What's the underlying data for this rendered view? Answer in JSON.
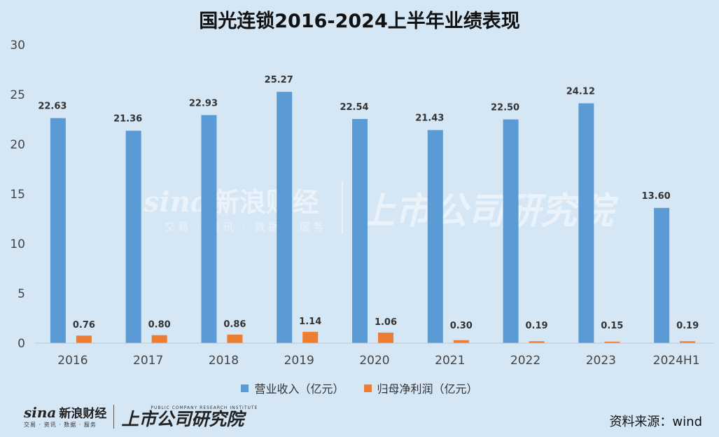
{
  "title": "国光连锁2016-2024上半年业绩表现",
  "source": "资料来源：wind",
  "watermark": {
    "left_logo": "sina",
    "left_name": "新浪财经",
    "left_tagline": "交易 · 资讯 · 数据 · 服务",
    "right_name": "上市公司研究院"
  },
  "brand": {
    "logo": "sina",
    "name": "新浪财经",
    "tagline": "交易 · 资讯 · 数据 · 服务",
    "institute_en": "PUBLIC COMPANY RESEARCH INSTITUTE",
    "institute_cn": "上市公司研究院"
  },
  "colors": {
    "revenue": "#5b9bd5",
    "profit": "#ed7d31",
    "background": "#d5e6f5"
  },
  "chart_data": {
    "type": "bar",
    "title": "国光连锁2016-2024上半年业绩表现",
    "categories": [
      "2016",
      "2017",
      "2018",
      "2019",
      "2020",
      "2021",
      "2022",
      "2023",
      "2024H1"
    ],
    "series": [
      {
        "name": "营业收入（亿元）",
        "values": [
          22.63,
          21.36,
          22.93,
          25.27,
          22.54,
          21.43,
          22.5,
          24.12,
          13.6
        ],
        "labels": [
          "22.63",
          "21.36",
          "22.93",
          "25.27",
          "22.54",
          "21.43",
          "22.50",
          "24.12",
          "13.60"
        ]
      },
      {
        "name": "归母净利润（亿元）",
        "values": [
          0.76,
          0.8,
          0.86,
          1.14,
          1.06,
          0.3,
          0.19,
          0.15,
          0.19
        ],
        "labels": [
          "0.76",
          "0.80",
          "0.86",
          "1.14",
          "1.06",
          "0.30",
          "0.19",
          "0.15",
          "0.19"
        ]
      }
    ],
    "ylim": [
      0,
      30
    ],
    "yticks": [
      "0",
      "5",
      "10",
      "15",
      "20",
      "25",
      "30"
    ],
    "grid": false,
    "legend": "bottom"
  }
}
